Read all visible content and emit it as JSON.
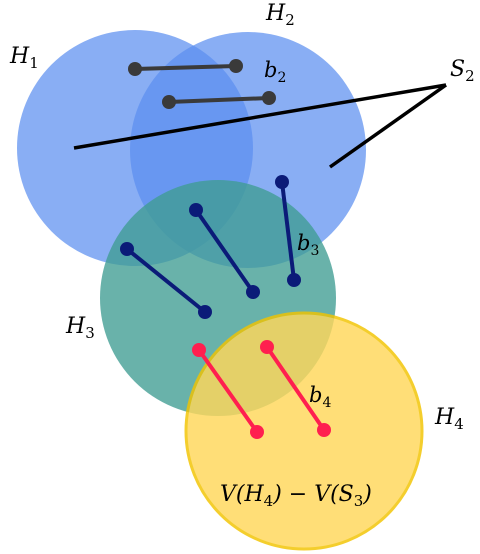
{
  "colors": {
    "h1": "#5b8ff0",
    "h2": "#5b8ff0",
    "h3": "#3f9c92",
    "h4": "#ffd75a",
    "h4_stroke": "#f2c400",
    "edge_gray": "#3a3a3a",
    "edge_navy": "#0b1b78",
    "edge_red": "#ff1f4f",
    "line_black": "#000000"
  },
  "labels": {
    "h1": "H",
    "h1_sub": "1",
    "h2": "H",
    "h2_sub": "2",
    "h3": "H",
    "h3_sub": "3",
    "h4": "H",
    "h4_sub": "4",
    "b2": "b",
    "b2_sub": "2",
    "b3": "b",
    "b3_sub": "3",
    "b4": "b",
    "b4_sub": "4",
    "s2": "S",
    "s2_sub": "2",
    "formula": {
      "a": "V(H",
      "a_sub": "4",
      "b": ") − V(S",
      "b_sub": "3",
      "c": ")"
    }
  }
}
